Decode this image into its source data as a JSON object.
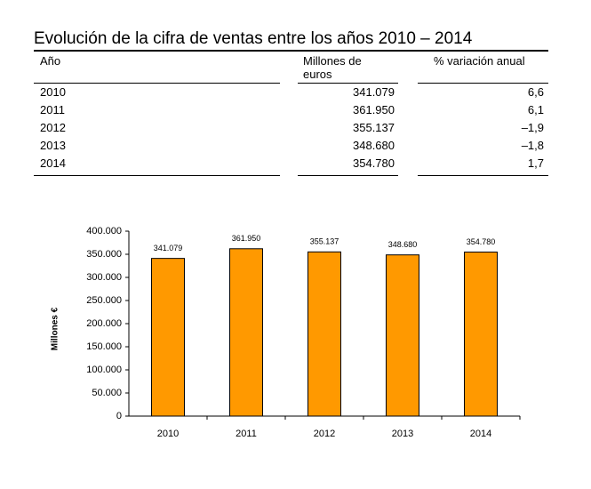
{
  "header": {
    "title": "Evolución de la cifra de ventas entre los años 2010 – 2014"
  },
  "table": {
    "columns": [
      "Año",
      "Millones de euros",
      "% variación anual"
    ],
    "rows": [
      [
        "2010",
        "341.079",
        "6,6"
      ],
      [
        "2011",
        "361.950",
        "6,1"
      ],
      [
        "2012",
        "355.137",
        "–1,9"
      ],
      [
        "2013",
        "348.680",
        "–1,8"
      ],
      [
        "2014",
        "354.780",
        "1,7"
      ]
    ]
  },
  "chart_data": {
    "type": "bar",
    "y_label": "Millones €",
    "categories": [
      "2010",
      "2011",
      "2012",
      "2013",
      "2014"
    ],
    "values": [
      341079,
      361950,
      355137,
      348680,
      354780
    ],
    "value_labels": [
      "341.079",
      "361.950",
      "355.137",
      "348.680",
      "354.780"
    ],
    "color": "#ff9900",
    "ylim": [
      0,
      400000
    ],
    "yticks": [
      0,
      {
        "value": 50000,
        "label": "50.000"
      },
      {
        "value": 100000,
        "label": "100.000"
      },
      {
        "value": 150000,
        "label": "150.000"
      },
      {
        "value": 200000,
        "label": "200.000"
      },
      {
        "value": 250000,
        "label": "250.000"
      },
      {
        "value": 300000,
        "label": "300.000"
      },
      {
        "value": 350000,
        "label": "350.000"
      },
      {
        "value": 400000,
        "label": "400.000"
      }
    ],
    "grid": false
  }
}
